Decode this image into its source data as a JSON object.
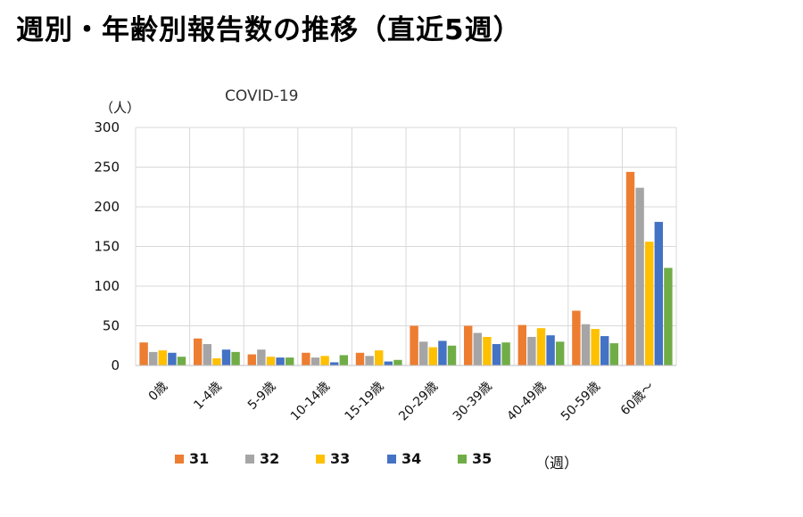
{
  "page": {
    "title": "週別・年齢別報告数の推移（直近5週）"
  },
  "chart_data": {
    "type": "bar",
    "title": "COVID-19",
    "ylabel": "（人）",
    "xlabel": "",
    "ylim": [
      0,
      300
    ],
    "yticks": [
      0,
      50,
      100,
      150,
      200,
      250,
      300
    ],
    "grid": true,
    "legend_position": "bottom",
    "legend_unit": "（週）",
    "categories": [
      "0歳",
      "1-4歳",
      "5-9歳",
      "10-14歳",
      "15-19歳",
      "20-29歳",
      "30-39歳",
      "40-49歳",
      "50-59歳",
      "60歳～"
    ],
    "series": [
      {
        "name": "31",
        "color": "#ED7D31",
        "values": [
          29,
          34,
          14,
          16,
          16,
          50,
          50,
          51,
          69,
          244
        ]
      },
      {
        "name": "32",
        "color": "#A5A5A5",
        "values": [
          17,
          27,
          20,
          10,
          12,
          30,
          41,
          36,
          52,
          224
        ]
      },
      {
        "name": "33",
        "color": "#FFC000",
        "values": [
          19,
          9,
          11,
          12,
          19,
          23,
          36,
          47,
          46,
          156
        ]
      },
      {
        "name": "34",
        "color": "#4472C4",
        "values": [
          16,
          20,
          10,
          4,
          5,
          31,
          27,
          38,
          37,
          181
        ]
      },
      {
        "name": "35",
        "color": "#70AD47",
        "values": [
          11,
          17,
          10,
          13,
          7,
          25,
          29,
          30,
          28,
          123
        ]
      }
    ]
  }
}
